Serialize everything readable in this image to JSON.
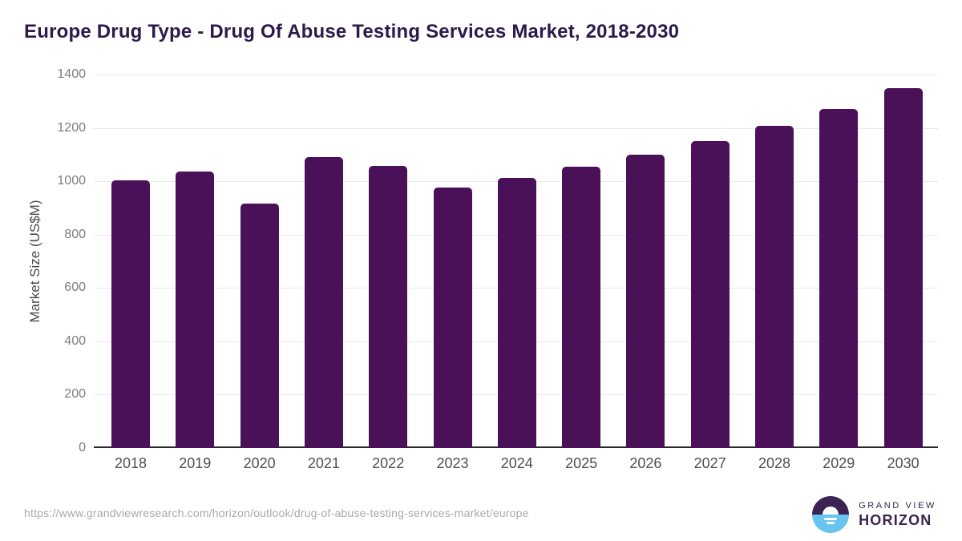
{
  "header": {
    "title": "Europe Drug Type - Drug Of Abuse Testing Services Market, 2018-2030"
  },
  "chart_data": {
    "type": "bar",
    "title": "Europe Drug Type - Drug Of Abuse Testing Services Market, 2018-2030",
    "categories": [
      "2018",
      "2019",
      "2020",
      "2021",
      "2022",
      "2023",
      "2024",
      "2025",
      "2026",
      "2027",
      "2028",
      "2029",
      "2030"
    ],
    "values": [
      1002,
      1035,
      916,
      1090,
      1057,
      977,
      1012,
      1054,
      1100,
      1152,
      1208,
      1271,
      1348
    ],
    "xlabel": "",
    "ylabel": "Market Size (US$M)",
    "ylim": [
      0,
      1400
    ],
    "ytick_step": 200,
    "grid": true,
    "legend": "none",
    "bar_color": "#4a1158"
  },
  "footer": {
    "url": "https://www.grandviewresearch.com/horizon/outlook/drug-of-abuse-testing-services-market/europe",
    "logo": {
      "line1": "GRAND VIEW",
      "line2": "HORIZON"
    }
  },
  "colors": {
    "bar": "#4a1158",
    "title_text": "#2b1b4b",
    "gridline": "#e8e8e8",
    "axis_line": "#2a2a2a",
    "tick_text": "#7d7d7d",
    "category_text": "#4f4f4f",
    "url_text": "#aaaaaa",
    "logo_purple": "#3a2350",
    "logo_blue": "#66c6f0"
  }
}
